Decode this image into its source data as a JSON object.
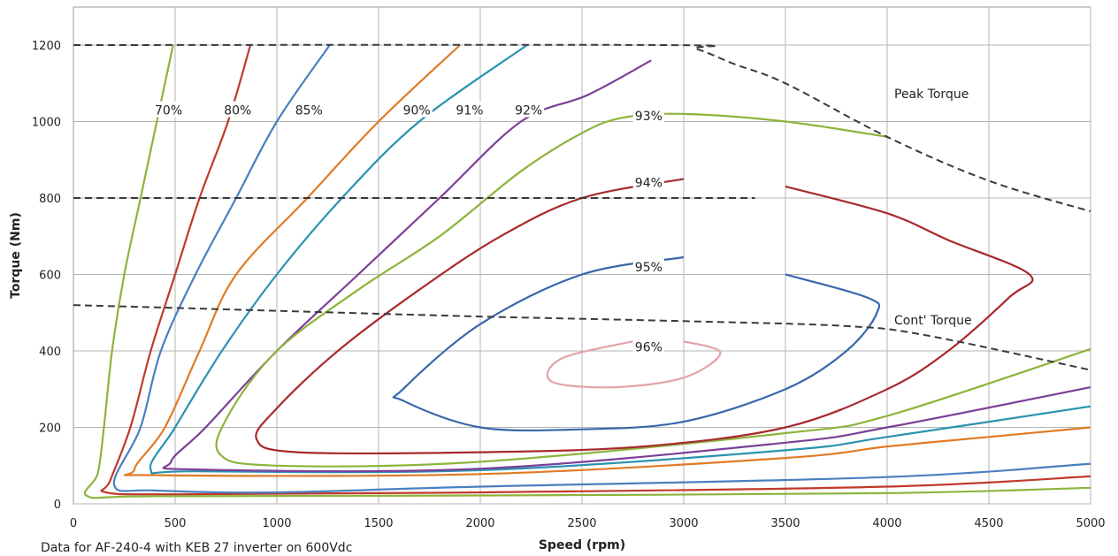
{
  "chart_data": {
    "type": "line",
    "xlabel": "Speed (rpm)",
    "ylabel": "Torque (Nm)",
    "xlim": [
      0,
      5000
    ],
    "ylim": [
      0,
      1200
    ],
    "x_ticks": [
      0,
      500,
      1000,
      1500,
      2000,
      2500,
      3000,
      3500,
      4000,
      4500,
      5000
    ],
    "y_ticks": [
      0,
      200,
      400,
      600,
      800,
      1000,
      1200
    ],
    "grid": true,
    "annotations": [
      {
        "text": "Peak Torque",
        "x": 4250,
        "y": 1060
      },
      {
        "text": "Cont' Torque",
        "x": 4050,
        "y": 475
      }
    ],
    "footnote": "Data for AF-240-4 with KEB 27 inverter on 600Vdc",
    "series": [
      {
        "name": "70%",
        "color": "#8db43c",
        "label_at": [
          400,
          1030
        ],
        "points": [
          [
            490,
            1200
          ],
          [
            410,
            1000
          ],
          [
            330,
            800
          ],
          [
            250,
            600
          ],
          [
            190,
            400
          ],
          [
            150,
            200
          ],
          [
            120,
            80
          ],
          [
            70,
            20
          ],
          [
            400,
            20
          ],
          [
            2000,
            22
          ],
          [
            4000,
            28
          ],
          [
            5000,
            42
          ]
        ]
      },
      {
        "name": "80%",
        "color": "#c0392b",
        "label_at": [
          740,
          1030
        ],
        "points": [
          [
            870,
            1200
          ],
          [
            760,
            1000
          ],
          [
            620,
            800
          ],
          [
            500,
            600
          ],
          [
            380,
            400
          ],
          [
            280,
            200
          ],
          [
            180,
            60
          ],
          [
            160,
            30
          ],
          [
            500,
            25
          ],
          [
            2000,
            30
          ],
          [
            4000,
            45
          ],
          [
            5000,
            72
          ]
        ]
      },
      {
        "name": "85%",
        "color": "#4a7fc0",
        "label_at": [
          1090,
          1030
        ],
        "points": [
          [
            1260,
            1200
          ],
          [
            1000,
            1000
          ],
          [
            800,
            800
          ],
          [
            600,
            600
          ],
          [
            430,
            400
          ],
          [
            330,
            200
          ],
          [
            200,
            50
          ],
          [
            400,
            35
          ],
          [
            1000,
            30
          ],
          [
            2000,
            45
          ],
          [
            4000,
            70
          ],
          [
            5000,
            105
          ]
        ]
      },
      {
        "name": "90%",
        "color": "#e07b24",
        "label_at": [
          1620,
          1030
        ],
        "points": [
          [
            1900,
            1200
          ],
          [
            1500,
            1000
          ],
          [
            1150,
            800
          ],
          [
            800,
            600
          ],
          [
            620,
            400
          ],
          [
            450,
            200
          ],
          [
            300,
            90
          ],
          [
            420,
            75
          ],
          [
            2000,
            78
          ],
          [
            3500,
            120
          ],
          [
            4000,
            150
          ],
          [
            4500,
            175
          ],
          [
            5000,
            200
          ]
        ]
      },
      {
        "name": "91%",
        "color": "#2a93b0",
        "label_at": [
          1880,
          1030
        ],
        "points": [
          [
            2230,
            1200
          ],
          [
            1700,
            1000
          ],
          [
            1320,
            800
          ],
          [
            1000,
            600
          ],
          [
            730,
            400
          ],
          [
            500,
            200
          ],
          [
            380,
            90
          ],
          [
            600,
            85
          ],
          [
            2000,
            88
          ],
          [
            3500,
            140
          ],
          [
            4000,
            175
          ],
          [
            5000,
            255
          ]
        ]
      },
      {
        "name": "92%",
        "color": "#7b3f98",
        "label_at": [
          2170,
          1030
        ],
        "points": [
          [
            2840,
            1160
          ],
          [
            2530,
            1070
          ],
          [
            2200,
            1000
          ],
          [
            1800,
            800
          ],
          [
            1400,
            600
          ],
          [
            1000,
            400
          ],
          [
            650,
            200
          ],
          [
            480,
            110
          ],
          [
            600,
            90
          ],
          [
            2000,
            92
          ],
          [
            3500,
            160
          ],
          [
            4000,
            200
          ],
          [
            5000,
            305
          ]
        ]
      },
      {
        "name": "93%",
        "color": "#8db43c",
        "label_at": [
          2760,
          1015
        ],
        "points": [
          [
            4000,
            960
          ],
          [
            3500,
            1000
          ],
          [
            3000,
            1020
          ],
          [
            2700,
            1010
          ],
          [
            2500,
            970
          ],
          [
            2200,
            870
          ],
          [
            1800,
            700
          ],
          [
            1400,
            560
          ],
          [
            1000,
            400
          ],
          [
            760,
            230
          ],
          [
            720,
            130
          ],
          [
            1000,
            100
          ],
          [
            2000,
            110
          ],
          [
            3500,
            185
          ],
          [
            4000,
            230
          ],
          [
            5000,
            405
          ]
        ]
      },
      {
        "name": "94%",
        "color": "#a8292d",
        "label_at": [
          2760,
          840
        ],
        "points": [
          [
            3000,
            850
          ],
          [
            2500,
            800
          ],
          [
            2100,
            700
          ],
          [
            1700,
            560
          ],
          [
            1300,
            400
          ],
          [
            1000,
            250
          ],
          [
            900,
            170
          ],
          [
            1100,
            135
          ],
          [
            2000,
            135
          ],
          [
            2800,
            150
          ],
          [
            3500,
            200
          ],
          [
            4000,
            300
          ],
          [
            4300,
            400
          ],
          [
            4600,
            540
          ],
          [
            4700,
            600
          ],
          [
            4300,
            690
          ],
          [
            4000,
            760
          ],
          [
            3500,
            830
          ]
        ]
      },
      {
        "name": "95%",
        "color": "#3868ab",
        "label_at": [
          2760,
          620
        ],
        "points": [
          [
            3000,
            645
          ],
          [
            2500,
            600
          ],
          [
            2000,
            470
          ],
          [
            1620,
            300
          ],
          [
            1620,
            270
          ],
          [
            2000,
            200
          ],
          [
            2500,
            195
          ],
          [
            3000,
            215
          ],
          [
            3500,
            300
          ],
          [
            3800,
            400
          ],
          [
            3950,
            500
          ],
          [
            3900,
            540
          ],
          [
            3500,
            600
          ]
        ]
      },
      {
        "name": "96%",
        "color": "#e3a3a8",
        "label_at": [
          2760,
          410
        ],
        "points": [
          [
            2750,
            425
          ],
          [
            2400,
            380
          ],
          [
            2350,
            320
          ],
          [
            2650,
            305
          ],
          [
            3000,
            330
          ],
          [
            3180,
            395
          ],
          [
            3000,
            425
          ]
        ]
      }
    ],
    "limits": [
      {
        "name": "Peak Torque",
        "style": "dashed",
        "points": [
          [
            0,
            1200
          ],
          [
            2900,
            1200
          ],
          [
            3060,
            1190
          ],
          [
            3250,
            1150
          ],
          [
            3500,
            1100
          ],
          [
            4000,
            960
          ],
          [
            4500,
            845
          ],
          [
            5000,
            765
          ]
        ]
      },
      {
        "name": "Cont' Torque",
        "style": "dashed",
        "points": [
          [
            0,
            520
          ],
          [
            1000,
            505
          ],
          [
            2000,
            490
          ],
          [
            3000,
            478
          ],
          [
            3800,
            465
          ],
          [
            4200,
            440
          ],
          [
            5000,
            350
          ]
        ]
      },
      {
        "name": "",
        "style": "dashed",
        "points": [
          [
            0,
            800
          ],
          [
            3350,
            800
          ]
        ]
      }
    ]
  }
}
